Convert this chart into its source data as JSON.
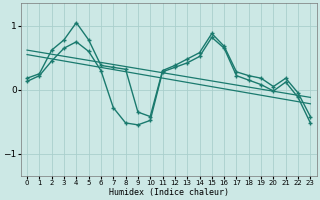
{
  "xlabel": "Humidex (Indice chaleur)",
  "bg_color": "#cce8e5",
  "grid_color": "#aacfcc",
  "line_color": "#1a7a6e",
  "xlim": [
    -0.5,
    23.5
  ],
  "ylim": [
    -1.35,
    1.35
  ],
  "yticks": [
    -1,
    0,
    1
  ],
  "xticks": [
    0,
    1,
    2,
    3,
    4,
    5,
    6,
    7,
    8,
    9,
    10,
    11,
    12,
    13,
    14,
    15,
    16,
    17,
    18,
    19,
    20,
    21,
    22,
    23
  ],
  "series1_x": [
    0,
    1,
    2,
    3,
    4,
    5,
    6,
    7,
    8,
    9,
    10,
    11,
    12,
    13,
    14,
    15,
    16,
    17,
    18,
    19,
    20,
    21,
    22,
    23
  ],
  "series1_y": [
    0.18,
    0.25,
    0.62,
    0.78,
    1.05,
    0.78,
    0.38,
    0.35,
    0.32,
    -0.35,
    -0.42,
    0.3,
    0.38,
    0.48,
    0.58,
    0.88,
    0.68,
    0.28,
    0.22,
    0.18,
    0.05,
    0.18,
    -0.05,
    -0.42
  ],
  "series2_x": [
    0,
    1,
    2,
    3,
    4,
    5,
    6,
    7,
    8,
    9,
    10,
    11,
    12,
    13,
    14,
    15,
    16,
    17,
    18,
    19,
    20,
    21,
    22,
    23
  ],
  "series2_y": [
    0.13,
    0.22,
    0.45,
    0.65,
    0.75,
    0.6,
    0.3,
    -0.28,
    -0.52,
    -0.55,
    -0.48,
    0.28,
    0.35,
    0.42,
    0.52,
    0.82,
    0.65,
    0.22,
    0.15,
    0.08,
    -0.02,
    0.12,
    -0.12,
    -0.52
  ],
  "trend1_x": [
    0,
    23
  ],
  "trend1_y": [
    0.62,
    -0.12
  ],
  "trend2_x": [
    0,
    23
  ],
  "trend2_y": [
    0.55,
    -0.22
  ]
}
